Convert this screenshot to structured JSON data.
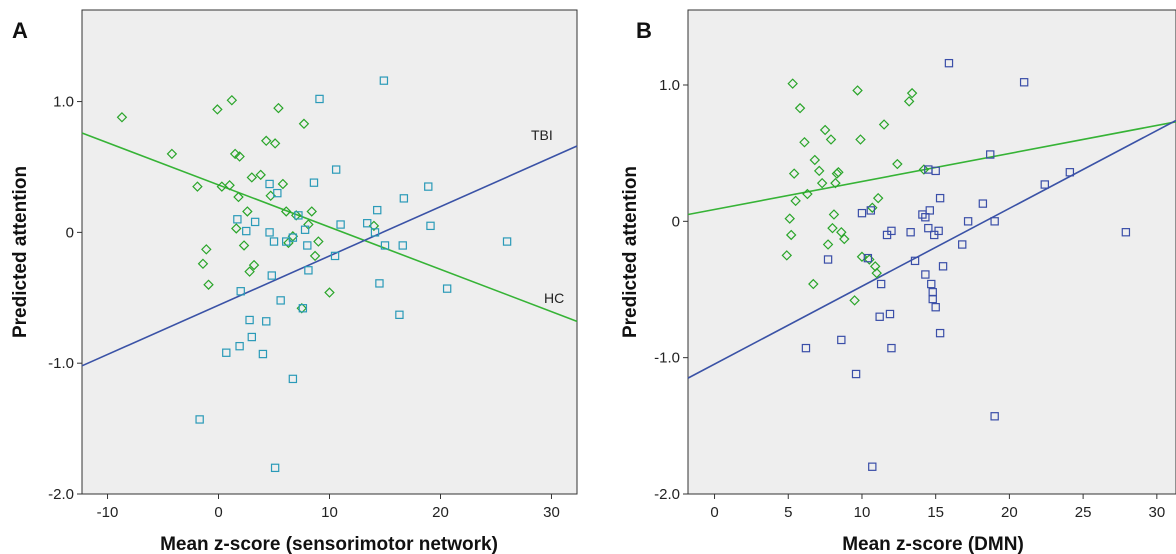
{
  "chart_data": [
    {
      "type": "scatter",
      "panel_label": "A",
      "xlabel": "Mean z-score (sensorimotor network)",
      "ylabel": "Predicted attention",
      "xlim": [
        -12.3,
        32.3
      ],
      "ylim": [
        -2.0,
        1.7
      ],
      "x_ticks": [
        -10,
        0,
        10,
        20,
        30
      ],
      "x_tick_labels": [
        "-10",
        "0",
        "10",
        "20",
        "30"
      ],
      "y_ticks": [
        -2.0,
        -1.0,
        0,
        1.0
      ],
      "y_tick_labels": [
        "-2.0",
        "-1.0",
        "0",
        "1.0"
      ],
      "grid": false,
      "background": "#eeeeee",
      "series": [
        {
          "marker": "diamond",
          "color": "#2aa52a",
          "points": [
            [
              -8.7,
              0.88
            ],
            [
              -4.2,
              0.6
            ],
            [
              -1.9,
              0.35
            ],
            [
              -1.4,
              -0.24
            ],
            [
              -1.1,
              -0.13
            ],
            [
              -0.9,
              -0.4
            ],
            [
              -0.1,
              0.94
            ],
            [
              0.3,
              0.35
            ],
            [
              1.0,
              0.36
            ],
            [
              1.2,
              1.01
            ],
            [
              1.5,
              0.6
            ],
            [
              1.8,
              0.27
            ],
            [
              1.9,
              0.58
            ],
            [
              1.6,
              0.03
            ],
            [
              2.3,
              -0.1
            ],
            [
              2.6,
              0.16
            ],
            [
              2.8,
              -0.3
            ],
            [
              3.0,
              0.42
            ],
            [
              3.2,
              -0.25
            ],
            [
              3.8,
              0.44
            ],
            [
              4.3,
              0.7
            ],
            [
              4.7,
              0.28
            ],
            [
              5.1,
              0.68
            ],
            [
              5.4,
              0.95
            ],
            [
              5.8,
              0.37
            ],
            [
              6.1,
              0.16
            ],
            [
              6.3,
              -0.08
            ],
            [
              6.7,
              -0.03
            ],
            [
              7.0,
              0.13
            ],
            [
              7.5,
              -0.58
            ],
            [
              7.7,
              0.83
            ],
            [
              8.1,
              0.06
            ],
            [
              8.4,
              0.16
            ],
            [
              8.7,
              -0.18
            ],
            [
              9.0,
              -0.07
            ],
            [
              10.0,
              -0.46
            ],
            [
              14.0,
              0.05
            ]
          ]
        },
        {
          "marker": "square",
          "color": "#2a9ab8",
          "points": [
            [
              -1.7,
              -1.43
            ],
            [
              0.7,
              -0.92
            ],
            [
              1.7,
              0.1
            ],
            [
              1.9,
              -0.87
            ],
            [
              2.0,
              -0.45
            ],
            [
              2.5,
              0.01
            ],
            [
              2.8,
              -0.67
            ],
            [
              3.0,
              -0.8
            ],
            [
              3.3,
              0.08
            ],
            [
              4.0,
              -0.93
            ],
            [
              4.3,
              -0.68
            ],
            [
              4.6,
              0.37
            ],
            [
              4.6,
              0.0
            ],
            [
              4.8,
              -0.33
            ],
            [
              5.0,
              -0.07
            ],
            [
              5.1,
              -1.8
            ],
            [
              5.3,
              0.3
            ],
            [
              5.6,
              -0.52
            ],
            [
              6.1,
              -0.07
            ],
            [
              6.7,
              -0.04
            ],
            [
              6.7,
              -1.12
            ],
            [
              7.2,
              0.13
            ],
            [
              7.6,
              -0.58
            ],
            [
              7.8,
              0.02
            ],
            [
              8.0,
              -0.1
            ],
            [
              8.1,
              -0.29
            ],
            [
              8.6,
              0.38
            ],
            [
              9.1,
              1.02
            ],
            [
              10.5,
              -0.18
            ],
            [
              10.6,
              0.48
            ],
            [
              11.0,
              0.06
            ],
            [
              13.4,
              0.07
            ],
            [
              14.1,
              0.0
            ],
            [
              14.3,
              0.17
            ],
            [
              14.5,
              -0.39
            ],
            [
              14.9,
              1.16
            ],
            [
              15.0,
              -0.1
            ],
            [
              16.3,
              -0.63
            ],
            [
              16.6,
              -0.1
            ],
            [
              16.7,
              0.26
            ],
            [
              18.9,
              0.35
            ],
            [
              19.1,
              0.05
            ],
            [
              20.6,
              -0.43
            ],
            [
              26.0,
              -0.07
            ]
          ]
        }
      ],
      "lines": [
        {
          "name": "HC",
          "color": "#36b336",
          "x": [
            -12.3,
            32.3
          ],
          "y": [
            0.76,
            -0.68
          ]
        },
        {
          "name": "TBI",
          "color": "#3a52a6",
          "x": [
            -12.3,
            32.3
          ],
          "y": [
            -1.02,
            0.66
          ]
        }
      ]
    },
    {
      "type": "scatter",
      "panel_label": "B",
      "xlabel": "Mean z-score (DMN)",
      "ylabel": "Predicted attention",
      "xlim": [
        -1.8,
        31.3
      ],
      "ylim": [
        -2.0,
        1.55
      ],
      "x_ticks": [
        0,
        5,
        10,
        15,
        20,
        25,
        30
      ],
      "x_tick_labels": [
        "0",
        "5",
        "10",
        "15",
        "20",
        "25",
        "30"
      ],
      "y_ticks": [
        -2.0,
        -1.0,
        0,
        1.0
      ],
      "y_tick_labels": [
        "-2.0",
        "-1.0",
        "0",
        "1.0"
      ],
      "grid": false,
      "background": "#eeeeee",
      "series": [
        {
          "marker": "diamond",
          "color": "#2aa52a",
          "points": [
            [
              4.9,
              -0.25
            ],
            [
              5.1,
              0.02
            ],
            [
              5.2,
              -0.1
            ],
            [
              5.3,
              1.01
            ],
            [
              5.4,
              0.35
            ],
            [
              5.5,
              0.15
            ],
            [
              5.8,
              0.83
            ],
            [
              6.1,
              0.58
            ],
            [
              6.3,
              0.2
            ],
            [
              6.7,
              -0.46
            ],
            [
              6.8,
              0.45
            ],
            [
              7.1,
              0.37
            ],
            [
              7.3,
              0.28
            ],
            [
              7.5,
              0.67
            ],
            [
              7.9,
              0.6
            ],
            [
              8.1,
              0.05
            ],
            [
              8.2,
              0.28
            ],
            [
              8.3,
              0.35
            ],
            [
              8.4,
              0.36
            ],
            [
              8.6,
              -0.08
            ],
            [
              8.8,
              -0.13
            ],
            [
              9.5,
              -0.58
            ],
            [
              9.7,
              0.96
            ],
            [
              9.9,
              0.6
            ],
            [
              10.5,
              -0.28
            ],
            [
              10.7,
              0.1
            ],
            [
              10.9,
              -0.33
            ],
            [
              11.1,
              0.17
            ],
            [
              11.5,
              0.71
            ],
            [
              12.4,
              0.42
            ],
            [
              13.2,
              0.88
            ],
            [
              13.4,
              0.94
            ],
            [
              14.2,
              0.38
            ],
            [
              7.7,
              -0.17
            ],
            [
              8.0,
              -0.05
            ],
            [
              10.0,
              -0.26
            ],
            [
              11.0,
              -0.38
            ]
          ]
        },
        {
          "marker": "square",
          "color": "#3a4ea8",
          "points": [
            [
              6.2,
              -0.93
            ],
            [
              7.7,
              -0.28
            ],
            [
              8.6,
              -0.87
            ],
            [
              9.6,
              -1.12
            ],
            [
              10.0,
              0.06
            ],
            [
              10.4,
              -0.27
            ],
            [
              10.6,
              0.08
            ],
            [
              10.7,
              -1.8
            ],
            [
              11.2,
              -0.7
            ],
            [
              11.3,
              -0.46
            ],
            [
              11.7,
              -0.1
            ],
            [
              11.9,
              -0.68
            ],
            [
              12.0,
              -0.93
            ],
            [
              12.0,
              -0.07
            ],
            [
              13.3,
              -0.08
            ],
            [
              13.6,
              -0.29
            ],
            [
              14.1,
              0.05
            ],
            [
              14.3,
              0.03
            ],
            [
              14.3,
              -0.39
            ],
            [
              14.5,
              0.38
            ],
            [
              14.5,
              -0.05
            ],
            [
              14.6,
              0.08
            ],
            [
              14.7,
              -0.46
            ],
            [
              14.8,
              -0.57
            ],
            [
              14.8,
              -0.52
            ],
            [
              14.9,
              -0.1
            ],
            [
              15.0,
              0.37
            ],
            [
              15.0,
              -0.63
            ],
            [
              15.2,
              -0.07
            ],
            [
              15.3,
              0.17
            ],
            [
              15.3,
              -0.82
            ],
            [
              15.5,
              -0.33
            ],
            [
              15.9,
              1.16
            ],
            [
              16.8,
              -0.17
            ],
            [
              17.2,
              0.0
            ],
            [
              18.2,
              0.13
            ],
            [
              18.7,
              0.49
            ],
            [
              19.0,
              -1.43
            ],
            [
              19.0,
              0.0
            ],
            [
              21.0,
              1.02
            ],
            [
              22.4,
              0.27
            ],
            [
              24.1,
              0.36
            ],
            [
              27.9,
              -0.08
            ]
          ]
        }
      ],
      "lines": [
        {
          "color": "#36b336",
          "x": [
            -1.8,
            31.3
          ],
          "y": [
            0.05,
            0.73
          ]
        },
        {
          "color": "#3a52a6",
          "x": [
            -1.8,
            31.3
          ],
          "y": [
            -1.15,
            0.74
          ]
        }
      ]
    }
  ]
}
